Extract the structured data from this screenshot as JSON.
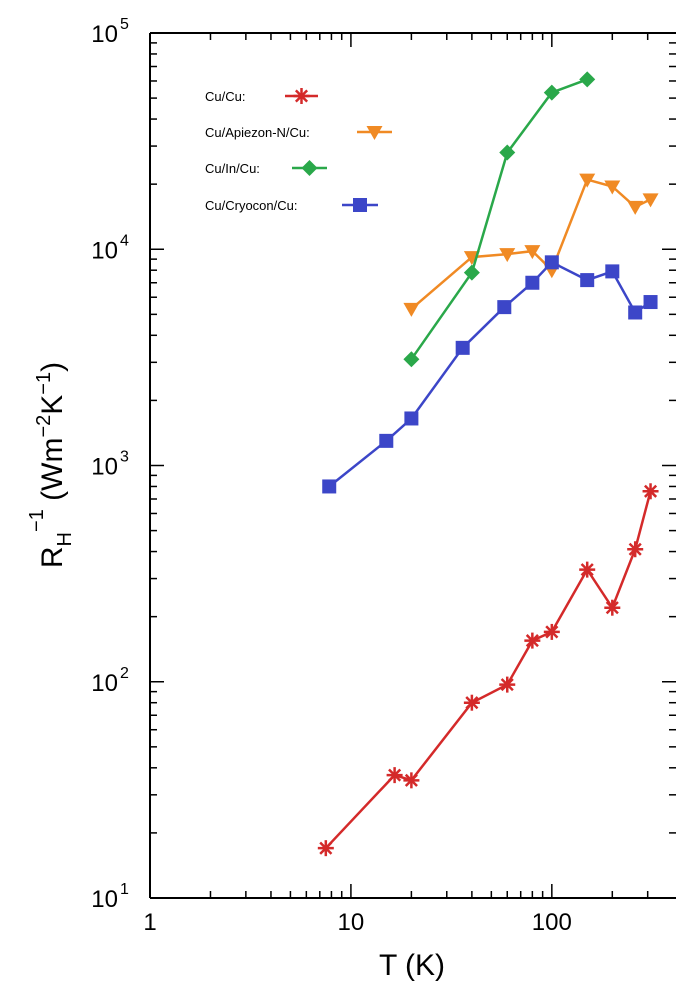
{
  "chart_data": {
    "type": "line",
    "xscale": "log",
    "yscale": "log",
    "xlim": [
      1,
      330
    ],
    "ylim": [
      10,
      100000
    ],
    "xlabel": "T  (K)",
    "ylabel": "R_H^-1 (Wm^-2K^-1)",
    "x_ticks": [
      {
        "value": 1,
        "label": "1"
      },
      {
        "value": 10,
        "label": "10"
      },
      {
        "value": 100,
        "label": "100"
      }
    ],
    "y_ticks": [
      {
        "value": 10,
        "base": "10",
        "exp": "1"
      },
      {
        "value": 100,
        "base": "10",
        "exp": "2"
      },
      {
        "value": 1000,
        "base": "10",
        "exp": "3"
      },
      {
        "value": 10000,
        "base": "10",
        "exp": "4"
      },
      {
        "value": 100000,
        "base": "10",
        "exp": "5"
      }
    ],
    "legend_position": "top-left",
    "grid": false,
    "series": [
      {
        "name": "Cu/Cu:",
        "color": "#d42a2a",
        "marker": "asterisk",
        "x": [
          7.5,
          16.5,
          20,
          40,
          60,
          80,
          100,
          150,
          200,
          260,
          310
        ],
        "y": [
          17,
          37,
          35,
          80,
          97,
          155,
          170,
          330,
          220,
          410,
          760
        ]
      },
      {
        "name": "Cu/Apiezon-N/Cu:",
        "color": "#f08a24",
        "marker": "triangle-down",
        "x": [
          20,
          40,
          60,
          80,
          100,
          150,
          200,
          260,
          310
        ],
        "y": [
          5300,
          9200,
          9500,
          9800,
          8000,
          21000,
          19500,
          15700,
          17000
        ]
      },
      {
        "name": "Cu/In/Cu:",
        "color": "#2aa84a",
        "marker": "diamond",
        "x": [
          20,
          40,
          60,
          100,
          150
        ],
        "y": [
          3100,
          7800,
          28000,
          53000,
          61000
        ]
      },
      {
        "name": "Cu/Cryocon/Cu:",
        "color": "#3c46c8",
        "marker": "square",
        "x": [
          7.8,
          15,
          20,
          36,
          58,
          80,
          100,
          150,
          200,
          260,
          310
        ],
        "y": [
          800,
          1300,
          1650,
          3500,
          5400,
          7000,
          8700,
          7200,
          7900,
          5100,
          5700
        ]
      }
    ]
  }
}
